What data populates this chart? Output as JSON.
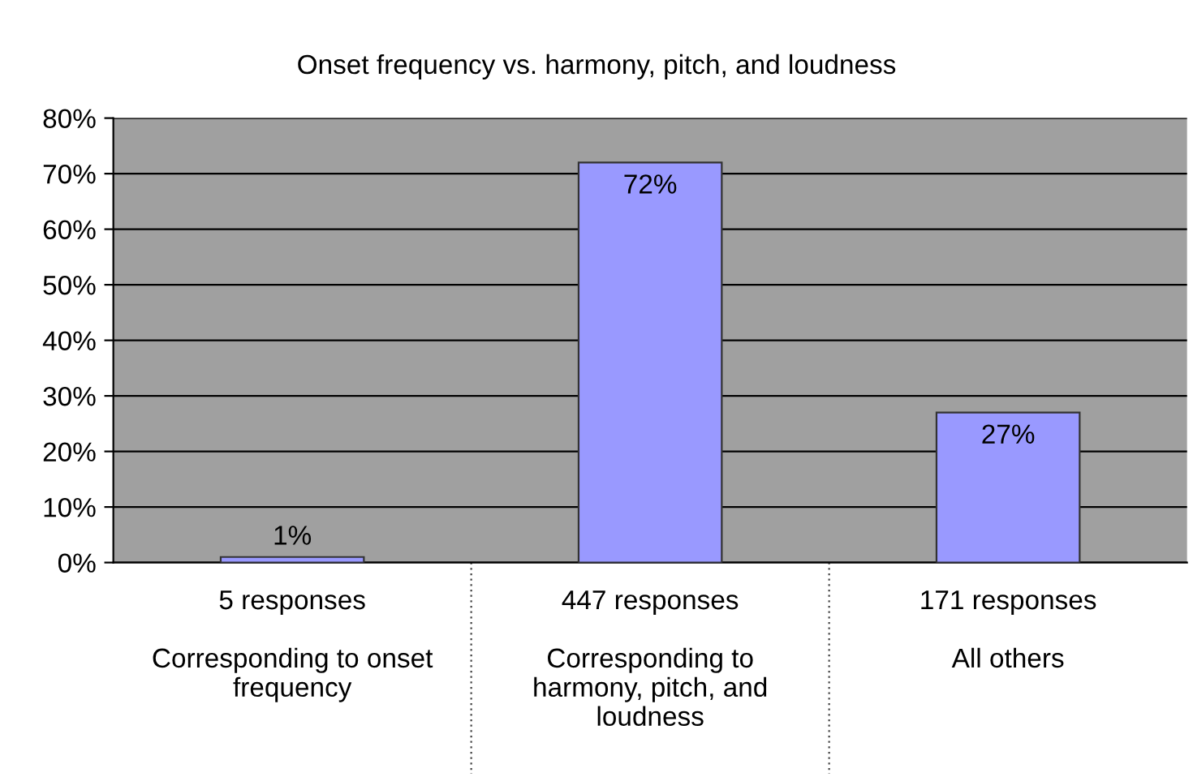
{
  "chart_data": {
    "type": "bar",
    "title": "Onset frequency vs. harmony, pitch, and loudness",
    "categories": [
      "5 responses\n\nCorresponding to onset\nfrequency",
      "447 responses\n\nCorresponding to\nharmony, pitch, and\nloudness",
      "171 responses\n\nAll others"
    ],
    "values": [
      1,
      72,
      27
    ],
    "color": "#9999ff",
    "value_labels": [
      "1%",
      "72%",
      "27%"
    ],
    "ylim": [
      0,
      80
    ],
    "yticks": [
      {
        "value": 0,
        "label": "0%"
      },
      {
        "value": 10,
        "label": "10%"
      },
      {
        "value": 20,
        "label": "20%"
      },
      {
        "value": 30,
        "label": "30%"
      },
      {
        "value": 40,
        "label": "40%"
      },
      {
        "value": 50,
        "label": "50%"
      },
      {
        "value": 60,
        "label": "60%"
      },
      {
        "value": 70,
        "label": "70%"
      },
      {
        "value": 80,
        "label": "80%"
      }
    ],
    "grid": "y",
    "legend": false
  }
}
